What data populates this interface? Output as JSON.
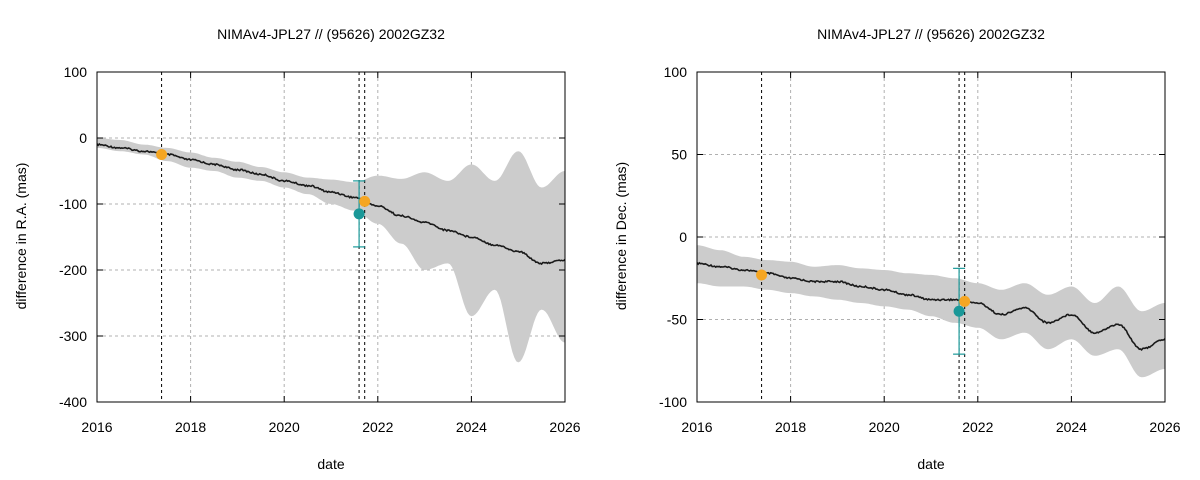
{
  "colors": {
    "band": "#cccccc",
    "line": "#1a1a1a",
    "grid": "#b0b0b0",
    "orange": "#f5a623",
    "teal": "#1a9898",
    "vline": "#000000"
  },
  "chart_data": [
    {
      "type": "line",
      "title": "NIMAv4-JPL27 // (95626) 2002GZ32",
      "xlabel": "date",
      "ylabel": "difference in R.A. (mas)",
      "xlim": [
        2016,
        2026
      ],
      "ylim": [
        -400,
        100
      ],
      "xticks": [
        2016,
        2018,
        2020,
        2022,
        2024,
        2026
      ],
      "yticks": [
        -400,
        -300,
        -200,
        -100,
        0,
        100
      ],
      "grid": true,
      "vlines": [
        2017.38,
        2021.6,
        2021.72
      ],
      "series": [
        {
          "name": "difference",
          "x": [
            2016.0,
            2016.5,
            2017.0,
            2017.5,
            2018.0,
            2018.5,
            2019.0,
            2019.5,
            2020.0,
            2020.5,
            2021.0,
            2021.5,
            2022.0,
            2022.5,
            2023.0,
            2023.5,
            2024.0,
            2024.5,
            2025.0,
            2025.5,
            2026.0
          ],
          "y": [
            -10,
            -15,
            -20,
            -25,
            -33,
            -40,
            -48,
            -55,
            -65,
            -72,
            -82,
            -90,
            -103,
            -118,
            -128,
            -140,
            -150,
            -162,
            -172,
            -190,
            -185
          ]
        }
      ],
      "band": {
        "upper": [
          0,
          -3,
          -10,
          -15,
          -22,
          -30,
          -36,
          -44,
          -52,
          -60,
          -63,
          -67,
          -57,
          -62,
          -52,
          -65,
          -40,
          -65,
          -20,
          -75,
          -50
        ],
        "lower": [
          -15,
          -20,
          -25,
          -35,
          -45,
          -50,
          -60,
          -65,
          -75,
          -85,
          -100,
          -110,
          -130,
          -160,
          -200,
          -190,
          -270,
          -230,
          -340,
          -260,
          -310
        ]
      },
      "points": [
        {
          "x": 2017.38,
          "y": -25,
          "color": "orange"
        },
        {
          "x": 2021.72,
          "y": -96,
          "color": "orange"
        },
        {
          "x": 2021.6,
          "y": -115,
          "color": "teal",
          "err": 50
        }
      ]
    },
    {
      "type": "line",
      "title": "NIMAv4-JPL27 // (95626) 2002GZ32",
      "xlabel": "date",
      "ylabel": "difference in Dec. (mas)",
      "xlim": [
        2016,
        2026
      ],
      "ylim": [
        -100,
        100
      ],
      "xticks": [
        2016,
        2018,
        2020,
        2022,
        2024,
        2026
      ],
      "yticks": [
        -100,
        -50,
        0,
        50,
        100
      ],
      "grid": true,
      "vlines": [
        2017.38,
        2021.6,
        2021.72
      ],
      "series": [
        {
          "name": "difference",
          "x": [
            2016.0,
            2016.5,
            2017.0,
            2017.5,
            2018.0,
            2018.5,
            2019.0,
            2019.5,
            2020.0,
            2020.5,
            2021.0,
            2021.5,
            2022.0,
            2022.5,
            2023.0,
            2023.5,
            2024.0,
            2024.5,
            2025.0,
            2025.5,
            2026.0
          ],
          "y": [
            -16,
            -18,
            -20,
            -22,
            -25,
            -27,
            -27,
            -30,
            -32,
            -35,
            -38,
            -38,
            -40,
            -47,
            -43,
            -52,
            -47,
            -58,
            -53,
            -68,
            -62
          ]
        }
      ],
      "band": {
        "upper": [
          -5,
          -8,
          -12,
          -14,
          -15,
          -18,
          -17,
          -19,
          -20,
          -22,
          -23,
          -25,
          -28,
          -32,
          -28,
          -35,
          -30,
          -40,
          -30,
          -45,
          -40
        ],
        "lower": [
          -28,
          -30,
          -30,
          -32,
          -34,
          -36,
          -38,
          -40,
          -42,
          -44,
          -48,
          -52,
          -55,
          -62,
          -58,
          -68,
          -62,
          -72,
          -68,
          -85,
          -80
        ]
      },
      "points": [
        {
          "x": 2017.38,
          "y": -23,
          "color": "orange"
        },
        {
          "x": 2021.72,
          "y": -39,
          "color": "orange"
        },
        {
          "x": 2021.6,
          "y": -45,
          "color": "teal",
          "err": 26
        }
      ]
    }
  ]
}
